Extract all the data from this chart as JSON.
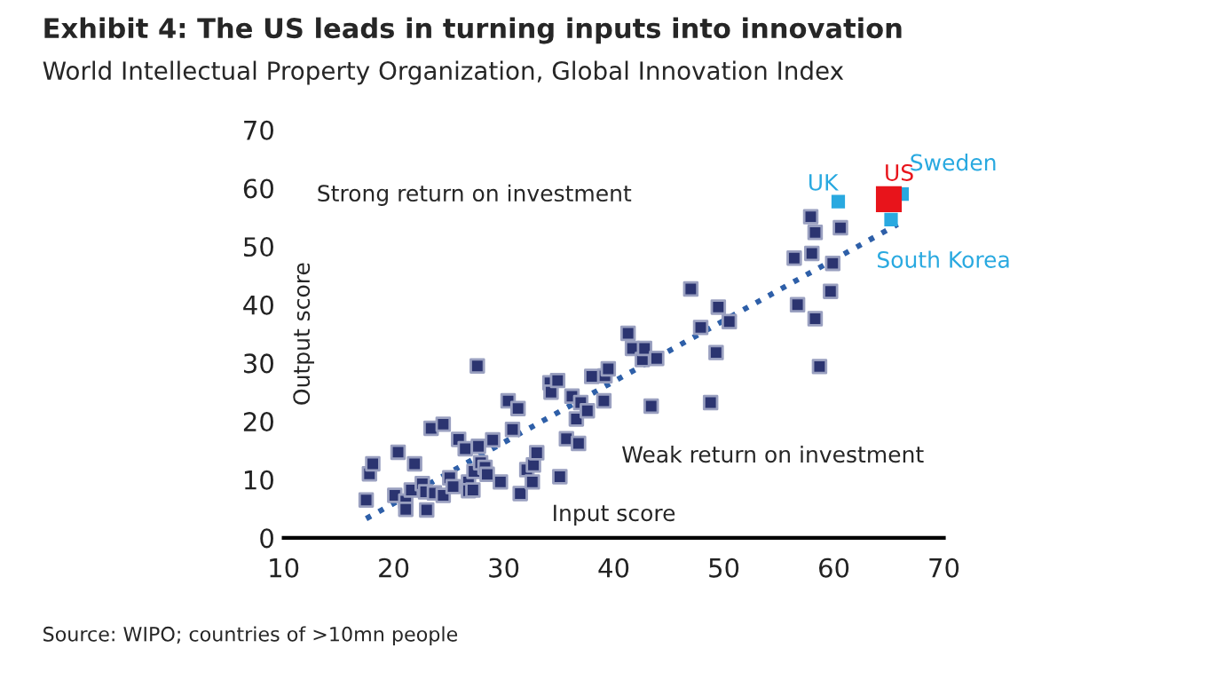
{
  "chart_data": {
    "type": "scatter",
    "title": "Exhibit 4: The US leads in turning inputs into innovation",
    "subtitle": "World Intellectual Property Organization, Global Innovation Index",
    "xlabel": "Input score",
    "ylabel": "Output score",
    "xlim": [
      10,
      70
    ],
    "xticks": [
      10,
      20,
      30,
      40,
      50,
      60,
      70
    ],
    "ylim": [
      0,
      70
    ],
    "yticks": [
      0,
      10,
      20,
      30,
      40,
      50,
      60,
      70
    ],
    "grid": false,
    "legend": false,
    "marker": "square",
    "series": [
      {
        "color": "#2b3470",
        "x": [
          17.5,
          17.8,
          18.1,
          20.1,
          20.4,
          21.1,
          21.1,
          21.6,
          21.9,
          22.6,
          22.9,
          23.0,
          23.4,
          23.7,
          24.5,
          24.5,
          25.1,
          25.4,
          25.9,
          26.5,
          26.8,
          26.8,
          27.2,
          27.3,
          27.6,
          27.7,
          27.9,
          28.3,
          28.5,
          29.0,
          29.7,
          30.4,
          30.8,
          31.3,
          31.5,
          32.1,
          32.6,
          32.7,
          33.0,
          34.2,
          34.3,
          34.9,
          35.1,
          35.7,
          36.2,
          36.6,
          36.8,
          37.0,
          37.6,
          38.0,
          39.1,
          39.2,
          39.5,
          41.3,
          41.7,
          42.6,
          42.8,
          43.4,
          43.9,
          47.0,
          47.9,
          48.8,
          49.3,
          49.5,
          50.5,
          56.4,
          56.7,
          57.9,
          58.0,
          58.3,
          58.3,
          58.7,
          59.7,
          59.9,
          60.6
        ],
        "values": [
          6.5,
          11.0,
          12.7,
          7.3,
          14.7,
          6.3,
          4.9,
          8.2,
          12.7,
          9.3,
          7.9,
          4.8,
          18.8,
          7.7,
          19.5,
          7.3,
          10.3,
          8.8,
          16.9,
          15.3,
          9.6,
          8.1,
          8.2,
          11.4,
          29.5,
          15.7,
          12.9,
          12.1,
          10.9,
          16.8,
          9.6,
          23.5,
          18.6,
          22.2,
          7.6,
          11.7,
          9.6,
          12.5,
          14.6,
          26.6,
          25.0,
          27.0,
          10.5,
          17.0,
          24.3,
          20.4,
          16.2,
          23.2,
          21.8,
          27.7,
          23.5,
          27.8,
          29.0,
          35.1,
          32.5,
          30.6,
          32.5,
          22.6,
          30.8,
          42.7,
          36.1,
          23.2,
          31.8,
          39.6,
          37.1,
          48.0,
          40.0,
          55.1,
          48.8,
          52.4,
          37.6,
          29.4,
          42.3,
          47.1,
          53.2
        ]
      },
      {
        "color": "#29a9e0",
        "x": [
          60.4,
          66.2,
          65.2
        ],
        "values": [
          57.7,
          59.0,
          54.6
        ]
      },
      {
        "color": "#e8141b",
        "x": [
          65.0
        ],
        "values": [
          58.1
        ]
      },
      {
        "type": "line",
        "color": "#2e5fa8",
        "line_style": "dotted",
        "marker": "none",
        "x": [
          17.5,
          65.8
        ],
        "values": [
          3.3,
          53.8
        ]
      }
    ],
    "annotations": [
      {
        "text": "UK",
        "x": 60.4,
        "y": 57.7
      },
      {
        "text": "US",
        "x": 65.0,
        "y": 58.1
      },
      {
        "text": "Sweden",
        "x": 66.2,
        "y": 59.0
      },
      {
        "text": "South Korea",
        "x": 65.2,
        "y": 54.6
      },
      "Strong return on investment",
      "Weak return on investment",
      "Source: WIPO; countries of >10mn people"
    ]
  }
}
